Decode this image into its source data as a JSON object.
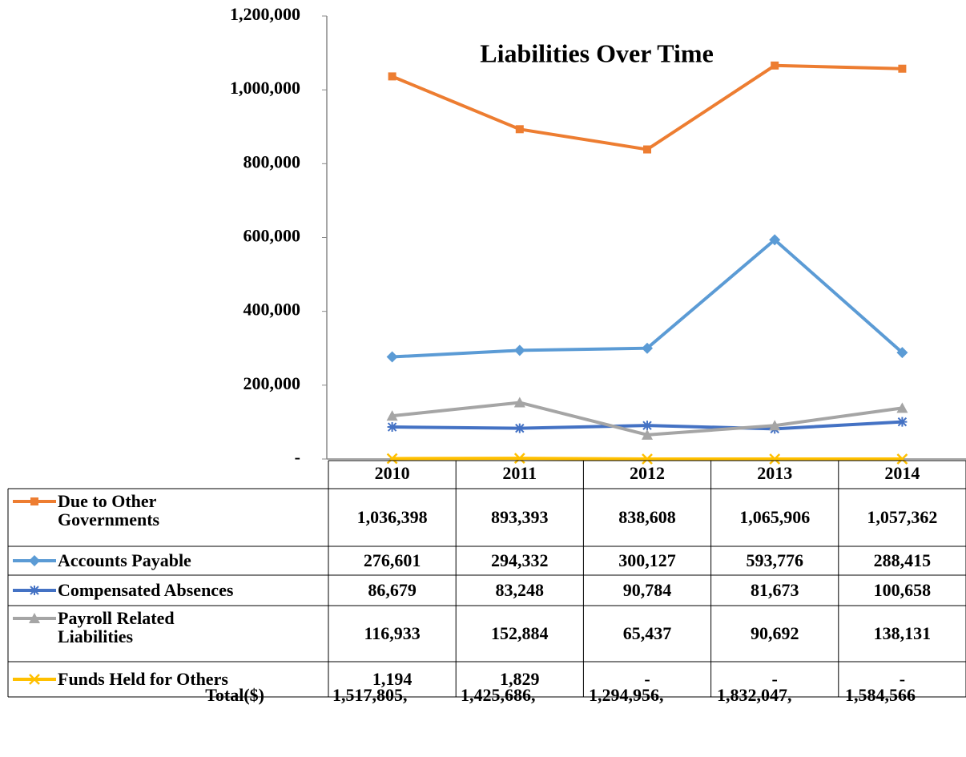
{
  "chart_data": {
    "type": "line",
    "title": "Liabilities Over Time",
    "categories": [
      "2010",
      "2011",
      "2012",
      "2013",
      "2014"
    ],
    "ylim": [
      0,
      1200000
    ],
    "yticks": [
      {
        "value": 0,
        "label": "-"
      },
      {
        "value": 200000,
        "label": "200,000"
      },
      {
        "value": 400000,
        "label": "400,000"
      },
      {
        "value": 600000,
        "label": "600,000"
      },
      {
        "value": 800000,
        "label": "800,000"
      },
      {
        "value": 1000000,
        "label": "1,000,000"
      },
      {
        "value": 1200000,
        "label": "1,200,000"
      }
    ],
    "grid": false,
    "series": [
      {
        "name": "Due to Other Governments",
        "color": "#ED7D31",
        "marker": "square",
        "values": [
          1036398,
          893393,
          838608,
          1065906,
          1057362
        ],
        "value_labels": [
          "1,036,398",
          "893,393",
          "838,608",
          "1,065,906",
          "1,057,362"
        ]
      },
      {
        "name": "Accounts Payable",
        "color": "#5B9BD5",
        "marker": "diamond",
        "values": [
          276601,
          294332,
          300127,
          593776,
          288415
        ],
        "value_labels": [
          "276,601",
          "294,332",
          "300,127",
          "593,776",
          "288,415"
        ]
      },
      {
        "name": "Compensated Absences",
        "color": "#4472C4",
        "marker": "asterisk",
        "values": [
          86679,
          83248,
          90784,
          81673,
          100658
        ],
        "value_labels": [
          "86,679",
          "83,248",
          "90,784",
          "81,673",
          "100,658"
        ]
      },
      {
        "name": "Payroll Related Liabilities",
        "color": "#A5A5A5",
        "marker": "triangle",
        "values": [
          116933,
          152884,
          65437,
          90692,
          138131
        ],
        "value_labels": [
          "116,933",
          "152,884",
          "65,437",
          "90,692",
          "138,131"
        ]
      },
      {
        "name": "Funds Held for Others",
        "color": "#FFC000",
        "marker": "x",
        "values": [
          1194,
          1829,
          0,
          0,
          0
        ],
        "value_labels": [
          "1,194",
          "1,829",
          "-",
          "-",
          "-"
        ]
      }
    ],
    "totals": {
      "label": "Total($)",
      "values": [
        1517805,
        1425686,
        1294956,
        1832047,
        1584566
      ],
      "value_labels": [
        "1,517,805,",
        "1,425,686,",
        "1,294,956,",
        "1,832,047,",
        "1,584,566"
      ]
    }
  }
}
